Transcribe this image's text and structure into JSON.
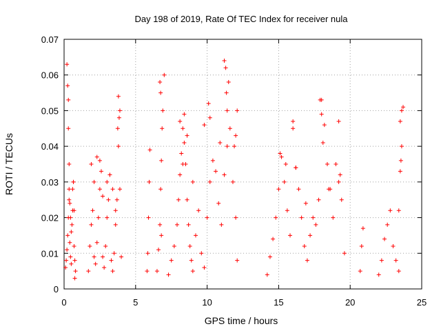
{
  "chart_data": {
    "type": "scatter",
    "title": "Day 198 of 2019, Rate Of TEC Index for receiver nula",
    "xlabel": "GPS time / hours",
    "ylabel": "ROTI / TECUs",
    "xlim": [
      0,
      25
    ],
    "ylim": [
      0,
      0.07
    ],
    "x_ticks": [
      "0",
      "5",
      "10",
      "15",
      "20",
      "25"
    ],
    "y_ticks": [
      "0",
      "0.01",
      "0.02",
      "0.03",
      "0.04",
      "0.05",
      "0.06",
      "0.07"
    ],
    "grid": true,
    "legend": "none",
    "marker": "+",
    "series_color": "#ff0000",
    "series": [
      {
        "x": [
          0.1,
          0.15,
          0.2,
          0.25,
          0.3,
          0.35,
          0.4,
          0.45,
          0.5,
          0.55,
          0.6,
          0.65,
          0.7,
          0.75,
          0.8,
          0.2,
          0.25,
          0.3,
          0.3,
          0.35,
          0.35,
          0.4,
          0.45,
          0.5,
          0.6,
          0.65,
          0.7,
          0.75,
          1.7,
          1.8,
          1.9,
          2.0,
          2.1,
          2.2,
          2.3,
          2.4,
          2.5,
          2.6,
          2.7,
          2.8,
          2.9,
          3.0,
          3.1,
          3.2,
          3.3,
          3.4,
          3.5,
          3.6,
          3.7,
          3.8,
          3.9,
          4.0,
          1.9,
          2.1,
          2.3,
          2.5,
          2.7,
          3.0,
          3.2,
          3.4,
          3.6,
          3.75,
          3.8,
          3.85,
          3.9,
          5.8,
          5.85,
          5.9,
          5.95,
          6.0,
          6.5,
          6.6,
          6.7,
          6.75,
          6.8,
          6.85,
          6.9,
          7.0,
          6.7,
          6.75,
          6.8,
          7.3,
          7.5,
          7.7,
          7.9,
          8.0,
          8.1,
          8.2,
          8.3,
          8.4,
          8.5,
          8.6,
          8.7,
          8.8,
          8.9,
          9.0,
          9.2,
          9.4,
          9.6,
          9.8,
          10.0,
          10.2,
          10.4,
          10.6,
          10.8,
          11.0,
          11.2,
          11.4,
          11.6,
          11.8,
          12.0,
          12.1,
          8.1,
          8.3,
          8.4,
          8.6,
          9.0,
          9.8,
          10.1,
          10.2,
          10.9,
          11.2,
          11.3,
          11.35,
          11.4,
          11.5,
          11.9,
          12.0,
          12.1,
          14.2,
          14.4,
          14.6,
          14.8,
          15.0,
          15.2,
          15.4,
          15.6,
          15.8,
          16.0,
          16.2,
          16.4,
          16.6,
          16.8,
          17.0,
          17.2,
          17.4,
          17.6,
          17.8,
          18.0,
          18.2,
          18.4,
          18.6,
          18.8,
          19.0,
          19.2,
          19.4,
          19.6,
          15.1,
          15.5,
          16.0,
          16.2,
          16.9,
          17.9,
          18.0,
          18.1,
          18.5,
          19.2,
          19.3,
          20.7,
          20.8,
          20.9,
          22.0,
          22.2,
          22.4,
          22.6,
          22.8,
          23.0,
          23.2,
          23.4,
          23.5,
          23.6,
          23.7,
          23.4,
          23.5,
          23.55,
          23.6
        ],
        "y": [
          0.006,
          0.008,
          0.011,
          0.015,
          0.02,
          0.025,
          0.013,
          0.009,
          0.007,
          0.018,
          0.022,
          0.03,
          0.012,
          0.008,
          0.005,
          0.063,
          0.057,
          0.053,
          0.045,
          0.035,
          0.028,
          0.024,
          0.02,
          0.016,
          0.028,
          0.03,
          0.022,
          0.003,
          0.005,
          0.012,
          0.018,
          0.022,
          0.009,
          0.007,
          0.013,
          0.02,
          0.028,
          0.033,
          0.009,
          0.006,
          0.012,
          0.02,
          0.025,
          0.032,
          0.008,
          0.005,
          0.01,
          0.018,
          0.025,
          0.04,
          0.05,
          0.009,
          0.035,
          0.03,
          0.037,
          0.036,
          0.026,
          0.03,
          0.032,
          0.028,
          0.022,
          0.045,
          0.054,
          0.048,
          0.028,
          0.005,
          0.01,
          0.02,
          0.03,
          0.039,
          0.005,
          0.011,
          0.018,
          0.028,
          0.036,
          0.045,
          0.05,
          0.06,
          0.058,
          0.055,
          0.015,
          0.004,
          0.008,
          0.012,
          0.018,
          0.025,
          0.032,
          0.038,
          0.045,
          0.041,
          0.035,
          0.025,
          0.018,
          0.012,
          0.008,
          0.005,
          0.015,
          0.022,
          0.01,
          0.006,
          0.02,
          0.03,
          0.036,
          0.033,
          0.024,
          0.018,
          0.032,
          0.04,
          0.045,
          0.03,
          0.02,
          0.008,
          0.047,
          0.035,
          0.049,
          0.043,
          0.03,
          0.046,
          0.052,
          0.048,
          0.041,
          0.064,
          0.062,
          0.055,
          0.05,
          0.058,
          0.04,
          0.043,
          0.05,
          0.004,
          0.009,
          0.014,
          0.02,
          0.028,
          0.037,
          0.03,
          0.022,
          0.015,
          0.045,
          0.034,
          0.028,
          0.02,
          0.012,
          0.008,
          0.015,
          0.02,
          0.018,
          0.025,
          0.053,
          0.046,
          0.035,
          0.028,
          0.02,
          0.035,
          0.03,
          0.025,
          0.01,
          0.038,
          0.035,
          0.047,
          0.034,
          0.024,
          0.053,
          0.049,
          0.041,
          0.028,
          0.047,
          0.032,
          0.005,
          0.012,
          0.017,
          0.004,
          0.008,
          0.014,
          0.018,
          0.022,
          0.012,
          0.008,
          0.005,
          0.047,
          0.05,
          0.051,
          0.022,
          0.033,
          0.036,
          0.04
        ]
      }
    ]
  }
}
